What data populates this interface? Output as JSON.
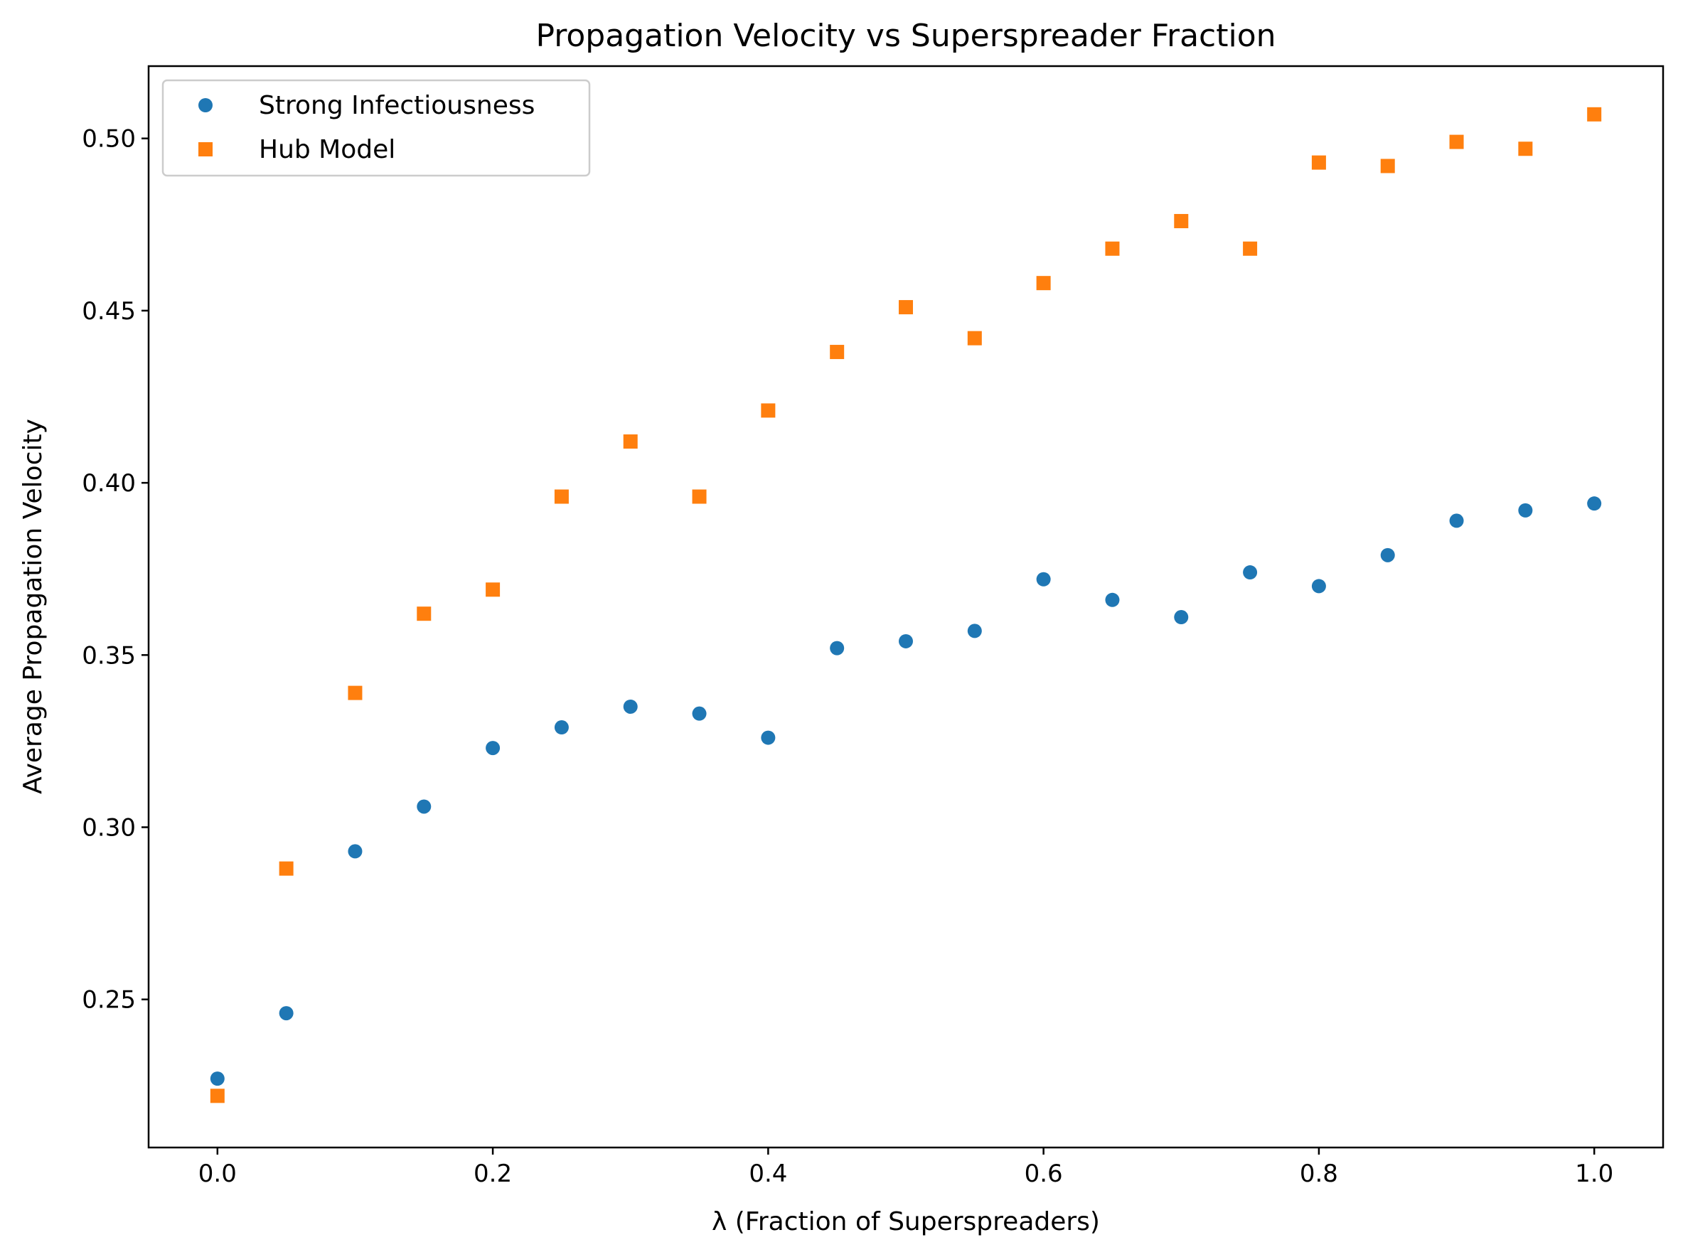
{
  "chart_data": {
    "type": "scatter",
    "title": "Propagation Velocity vs Superspreader Fraction",
    "xlabel": "λ (Fraction of Superspreaders)",
    "ylabel": "Average Propagation Velocity",
    "xlim": [
      -0.05,
      1.05
    ],
    "ylim": [
      0.207,
      0.521
    ],
    "xticks": [
      "0.0",
      "0.2",
      "0.4",
      "0.6",
      "0.8",
      "1.0"
    ],
    "yticks": [
      "0.25",
      "0.30",
      "0.35",
      "0.40",
      "0.45",
      "0.50"
    ],
    "grid": false,
    "legend_position": "top-left",
    "x": [
      0.0,
      0.05,
      0.1,
      0.15,
      0.2,
      0.25,
      0.3,
      0.35,
      0.4,
      0.45,
      0.5,
      0.55,
      0.6,
      0.65,
      0.7,
      0.75,
      0.8,
      0.85,
      0.9,
      0.95,
      1.0
    ],
    "series": [
      {
        "name": "Strong Infectiousness",
        "marker": "circle",
        "color": "#1f77b4",
        "values": [
          0.227,
          0.246,
          0.293,
          0.306,
          0.323,
          0.329,
          0.335,
          0.333,
          0.326,
          0.352,
          0.354,
          0.357,
          0.372,
          0.366,
          0.361,
          0.374,
          0.37,
          0.379,
          0.389,
          0.392,
          0.394
        ]
      },
      {
        "name": "Hub Model",
        "marker": "square",
        "color": "#ff7f0e",
        "values": [
          0.222,
          0.288,
          0.339,
          0.362,
          0.369,
          0.396,
          0.412,
          0.396,
          0.421,
          0.438,
          0.451,
          0.442,
          0.458,
          0.468,
          0.476,
          0.468,
          0.493,
          0.492,
          0.499,
          0.497,
          0.507
        ]
      }
    ]
  }
}
